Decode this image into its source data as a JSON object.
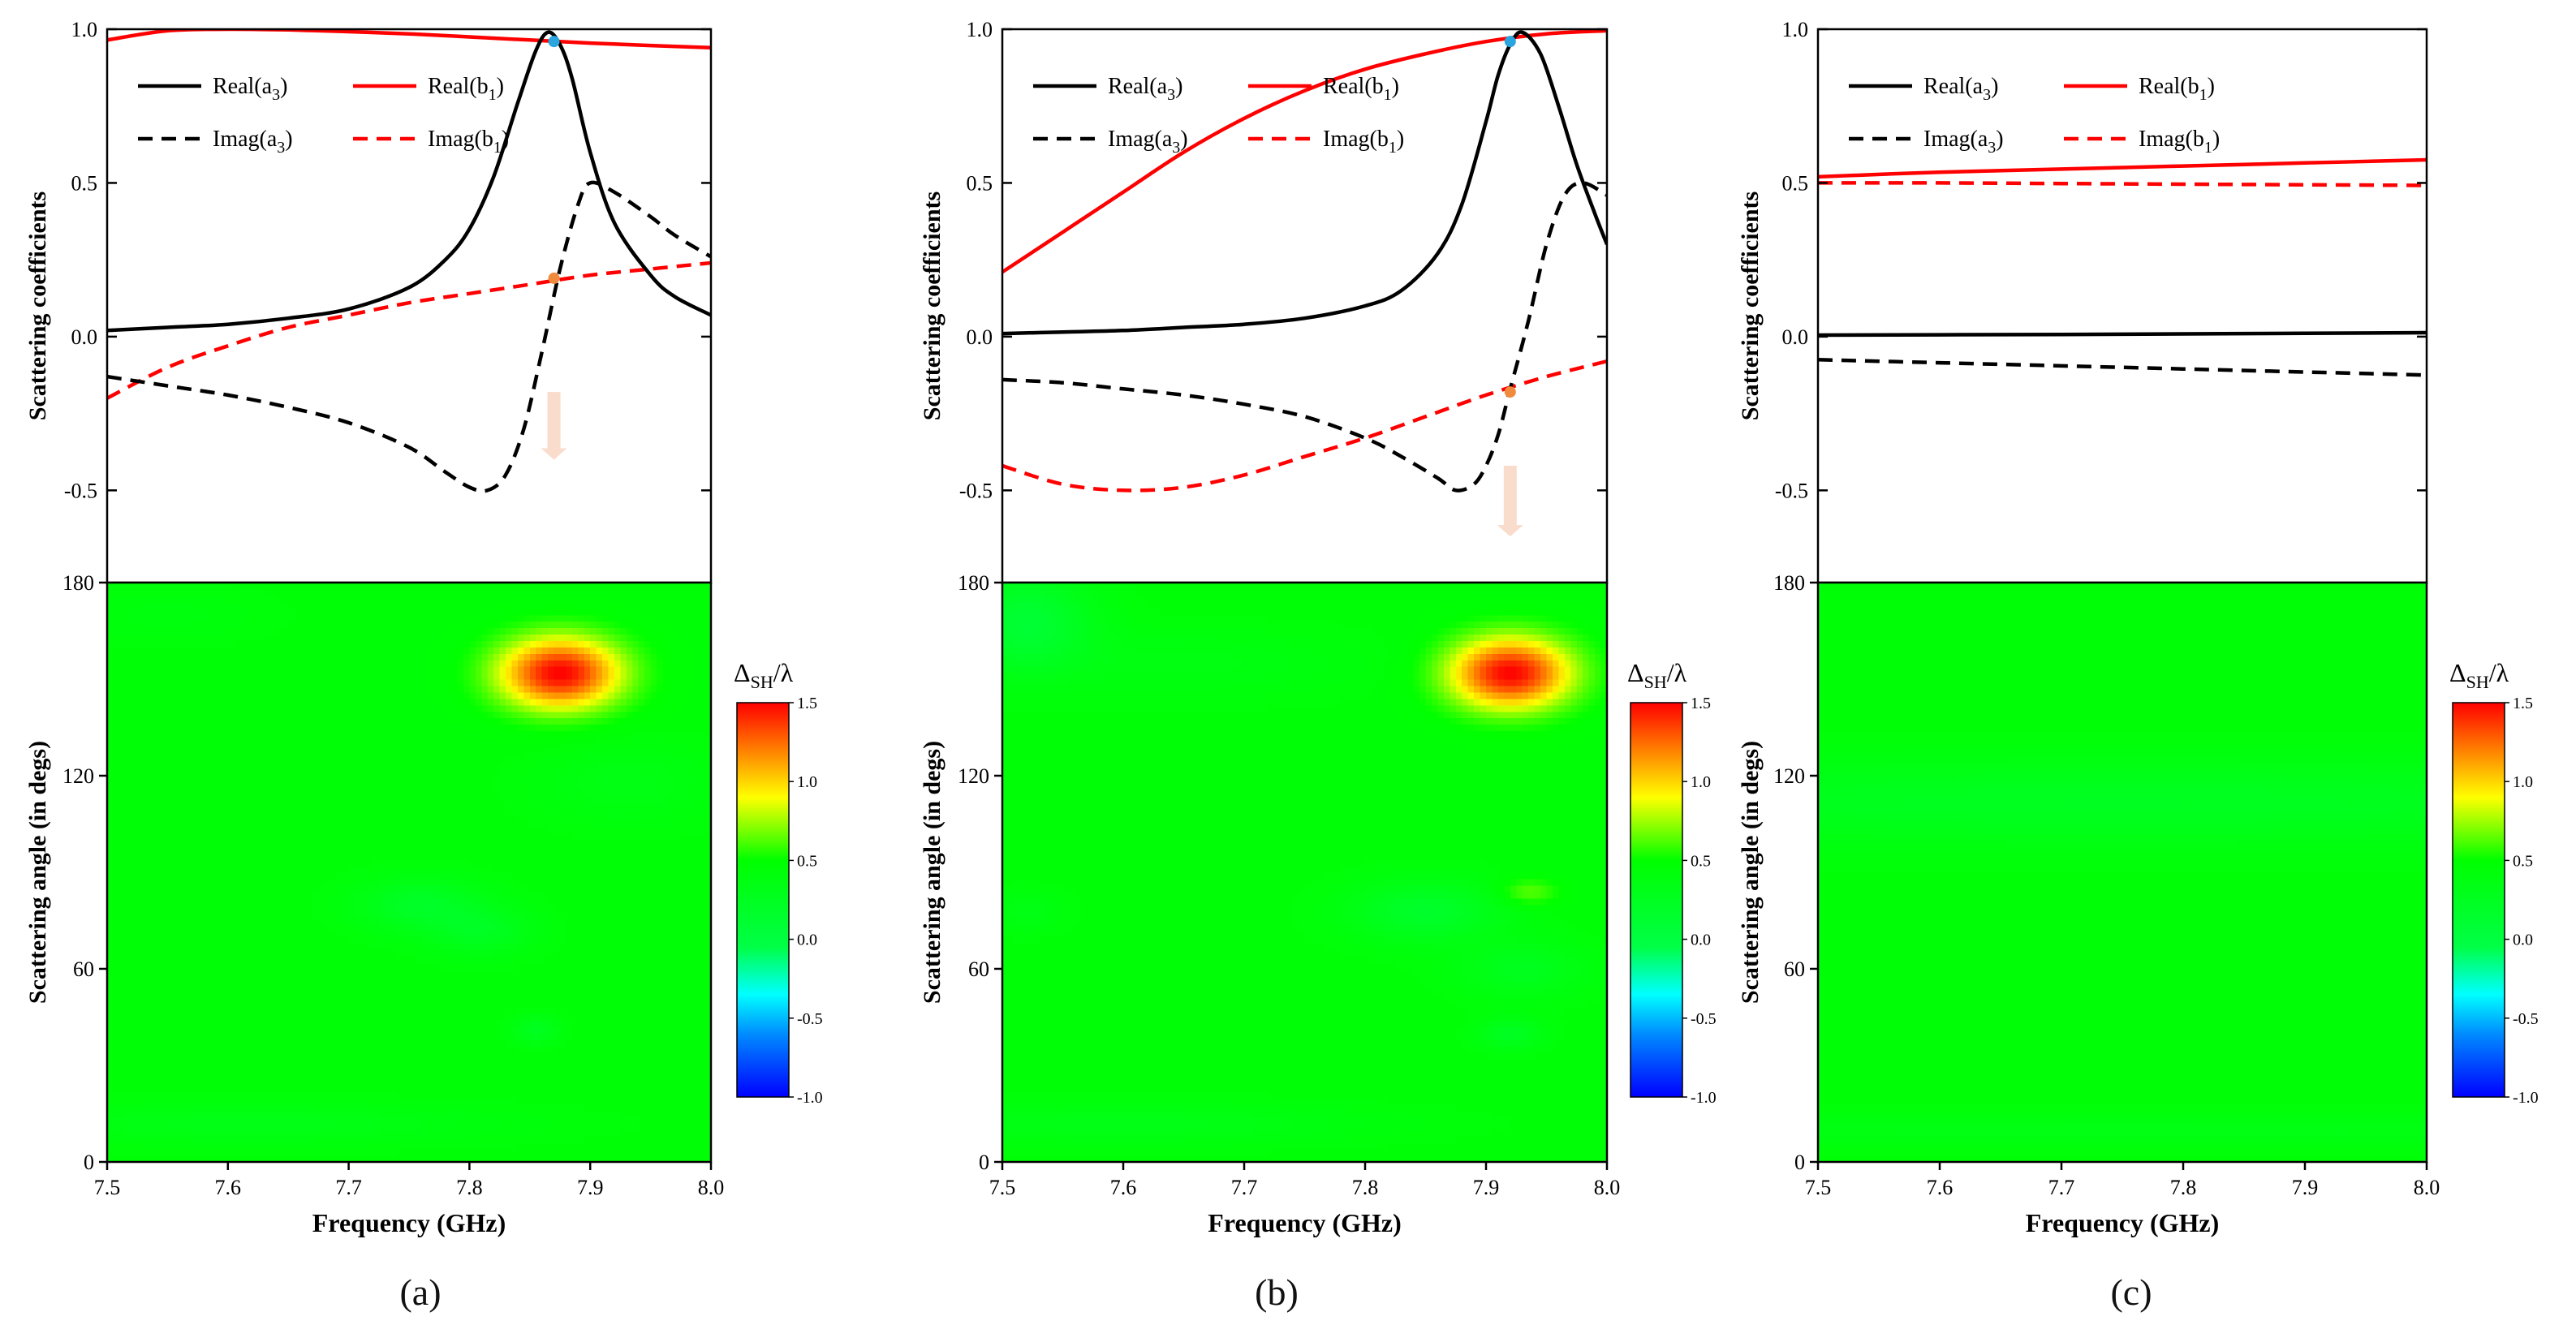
{
  "figure": {
    "panels": [
      {
        "id": "a",
        "label": "(a)"
      },
      {
        "id": "b",
        "label": "(b)"
      },
      {
        "id": "c",
        "label": "(c)"
      }
    ]
  },
  "chart_data": [
    {
      "panel": "a",
      "type": "line",
      "xlabel": "Frequency (GHz)",
      "ylabel": "Scattering coefficients",
      "xlim": [
        7.5,
        8.0
      ],
      "ylim": [
        -0.8,
        1.0
      ],
      "xticks": [
        7.5,
        7.6,
        7.7,
        7.8,
        7.9,
        8.0
      ],
      "xtick_labels": [
        "7.5",
        "7.6",
        "7.7",
        "7.8",
        "7.9",
        "8.0"
      ],
      "yticks": [
        -0.5,
        0.0,
        0.5,
        1.0
      ],
      "ytick_labels": [
        "-0.5",
        "0.0",
        "0.5",
        "1.0"
      ],
      "legend": [
        {
          "series": "real_a3",
          "base": "Real(a",
          "sub": "3",
          "tail": ")"
        },
        {
          "series": "real_b1",
          "base": "Real(b",
          "sub": "1",
          "tail": ")"
        },
        {
          "series": "imag_a3",
          "base": "Imag(a",
          "sub": "3",
          "tail": ")"
        },
        {
          "series": "imag_b1",
          "base": "Imag(b",
          "sub": "1",
          "tail": ")"
        }
      ],
      "legend_position": "top-left",
      "series": [
        {
          "name": "real_a3",
          "color": "#000000",
          "dash": false,
          "x": [
            7.5,
            7.55,
            7.6,
            7.65,
            7.7,
            7.75,
            7.78,
            7.8,
            7.82,
            7.84,
            7.855,
            7.865,
            7.875,
            7.885,
            7.9,
            7.92,
            7.95,
            7.97,
            8.0
          ],
          "y": [
            0.02,
            0.03,
            0.04,
            0.06,
            0.09,
            0.16,
            0.25,
            0.35,
            0.52,
            0.76,
            0.93,
            0.99,
            0.95,
            0.84,
            0.6,
            0.37,
            0.2,
            0.13,
            0.07
          ]
        },
        {
          "name": "real_b1",
          "color": "#ff0000",
          "dash": false,
          "x": [
            7.5,
            7.55,
            7.6,
            7.65,
            7.7,
            7.75,
            7.8,
            7.85,
            7.9,
            7.95,
            8.0
          ],
          "y": [
            0.965,
            0.995,
            1.0,
            0.998,
            0.992,
            0.985,
            0.975,
            0.965,
            0.955,
            0.947,
            0.94
          ]
        },
        {
          "name": "imag_a3",
          "color": "#000000",
          "dash": true,
          "x": [
            7.5,
            7.55,
            7.6,
            7.65,
            7.7,
            7.75,
            7.78,
            7.8,
            7.815,
            7.83,
            7.845,
            7.86,
            7.875,
            7.89,
            7.9,
            7.92,
            7.95,
            7.97,
            8.0
          ],
          "y": [
            -0.13,
            -0.16,
            -0.19,
            -0.23,
            -0.28,
            -0.36,
            -0.44,
            -0.49,
            -0.5,
            -0.45,
            -0.3,
            -0.05,
            0.22,
            0.43,
            0.5,
            0.47,
            0.39,
            0.33,
            0.26
          ]
        },
        {
          "name": "imag_b1",
          "color": "#ff0000",
          "dash": true,
          "x": [
            7.5,
            7.55,
            7.6,
            7.65,
            7.7,
            7.75,
            7.8,
            7.85,
            7.9,
            7.95,
            8.0
          ],
          "y": [
            -0.2,
            -0.1,
            -0.03,
            0.03,
            0.07,
            0.11,
            0.14,
            0.17,
            0.2,
            0.22,
            0.24
          ]
        }
      ],
      "markers": [
        {
          "x": 7.87,
          "y": 0.96,
          "color": "#2ba5e0"
        },
        {
          "x": 7.87,
          "y": 0.19,
          "color": "#f08a3c"
        }
      ],
      "arrow": {
        "x": 7.87,
        "y_from": -0.18,
        "y_to": -0.4,
        "color": "#f9dccc"
      }
    },
    {
      "panel": "b",
      "type": "line",
      "xlabel": "Frequency (GHz)",
      "ylabel": "Scattering coefficients",
      "xlim": [
        7.5,
        8.0
      ],
      "ylim": [
        -0.8,
        1.0
      ],
      "xticks": [
        7.5,
        7.6,
        7.7,
        7.8,
        7.9,
        8.0
      ],
      "xtick_labels": [
        "7.5",
        "7.6",
        "7.7",
        "7.8",
        "7.9",
        "8.0"
      ],
      "yticks": [
        -0.5,
        0.0,
        0.5,
        1.0
      ],
      "ytick_labels": [
        "-0.5",
        "0.0",
        "0.5",
        "1.0"
      ],
      "legend": [
        {
          "series": "real_a3",
          "base": "Real(a",
          "sub": "3",
          "tail": ")"
        },
        {
          "series": "real_b1",
          "base": "Real(b",
          "sub": "1",
          "tail": ")"
        },
        {
          "series": "imag_a3",
          "base": "Imag(a",
          "sub": "3",
          "tail": ")"
        },
        {
          "series": "imag_b1",
          "base": "Imag(b",
          "sub": "1",
          "tail": ")"
        }
      ],
      "legend_position": "top-left",
      "series": [
        {
          "name": "real_a3",
          "color": "#000000",
          "dash": false,
          "x": [
            7.5,
            7.55,
            7.6,
            7.65,
            7.7,
            7.75,
            7.8,
            7.83,
            7.86,
            7.88,
            7.9,
            7.91,
            7.92,
            7.93,
            7.945,
            7.96,
            7.975,
            7.99,
            8.0
          ],
          "y": [
            0.01,
            0.015,
            0.02,
            0.03,
            0.04,
            0.06,
            0.1,
            0.15,
            0.27,
            0.43,
            0.7,
            0.85,
            0.95,
            0.99,
            0.92,
            0.75,
            0.56,
            0.4,
            0.3
          ]
        },
        {
          "name": "real_b1",
          "color": "#ff0000",
          "dash": false,
          "x": [
            7.5,
            7.55,
            7.6,
            7.65,
            7.7,
            7.75,
            7.8,
            7.85,
            7.9,
            7.95,
            8.0
          ],
          "y": [
            0.21,
            0.34,
            0.47,
            0.6,
            0.71,
            0.8,
            0.87,
            0.92,
            0.96,
            0.985,
            0.995
          ]
        },
        {
          "name": "imag_a3",
          "color": "#000000",
          "dash": true,
          "x": [
            7.5,
            7.55,
            7.6,
            7.65,
            7.7,
            7.75,
            7.8,
            7.83,
            7.86,
            7.875,
            7.89,
            7.9,
            7.91,
            7.92,
            7.935,
            7.95,
            7.965,
            7.98,
            8.0
          ],
          "y": [
            -0.14,
            -0.15,
            -0.17,
            -0.19,
            -0.22,
            -0.26,
            -0.33,
            -0.39,
            -0.46,
            -0.5,
            -0.48,
            -0.42,
            -0.32,
            -0.17,
            0.05,
            0.3,
            0.46,
            0.5,
            0.46
          ]
        },
        {
          "name": "imag_b1",
          "color": "#ff0000",
          "dash": true,
          "x": [
            7.5,
            7.55,
            7.6,
            7.65,
            7.7,
            7.75,
            7.8,
            7.85,
            7.9,
            7.95,
            8.0
          ],
          "y": [
            -0.42,
            -0.48,
            -0.5,
            -0.49,
            -0.45,
            -0.39,
            -0.33,
            -0.26,
            -0.19,
            -0.13,
            -0.08
          ]
        }
      ],
      "markers": [
        {
          "x": 7.92,
          "y": 0.96,
          "color": "#2ba5e0"
        },
        {
          "x": 7.92,
          "y": -0.18,
          "color": "#f08a3c"
        }
      ],
      "arrow": {
        "x": 7.92,
        "y_from": -0.42,
        "y_to": -0.65,
        "color": "#f9dccc"
      }
    },
    {
      "panel": "c",
      "type": "line",
      "xlabel": "Frequency (GHz)",
      "ylabel": "Scattering coefficients",
      "xlim": [
        7.5,
        8.0
      ],
      "ylim": [
        -0.8,
        1.0
      ],
      "xticks": [
        7.5,
        7.6,
        7.7,
        7.8,
        7.9,
        8.0
      ],
      "xtick_labels": [
        "7.5",
        "7.6",
        "7.7",
        "7.8",
        "7.9",
        "8.0"
      ],
      "yticks": [
        -0.5,
        0.0,
        0.5,
        1.0
      ],
      "ytick_labels": [
        "-0.5",
        "0.0",
        "0.5",
        "1.0"
      ],
      "legend": [
        {
          "series": "real_a3",
          "base": "Real(a",
          "sub": "3",
          "tail": ")"
        },
        {
          "series": "real_b1",
          "base": "Real(b",
          "sub": "1",
          "tail": ")"
        },
        {
          "series": "imag_a3",
          "base": "Imag(a",
          "sub": "3",
          "tail": ")"
        },
        {
          "series": "imag_b1",
          "base": "Imag(b",
          "sub": "1",
          "tail": ")"
        }
      ],
      "legend_position": "top-left",
      "series": [
        {
          "name": "real_a3",
          "color": "#000000",
          "dash": false,
          "x": [
            7.5,
            7.6,
            7.7,
            7.8,
            7.9,
            8.0
          ],
          "y": [
            0.005,
            0.006,
            0.007,
            0.009,
            0.011,
            0.013
          ]
        },
        {
          "name": "real_b1",
          "color": "#ff0000",
          "dash": false,
          "x": [
            7.5,
            7.6,
            7.7,
            7.8,
            7.9,
            8.0
          ],
          "y": [
            0.52,
            0.535,
            0.545,
            0.555,
            0.565,
            0.575
          ]
        },
        {
          "name": "imag_a3",
          "color": "#000000",
          "dash": true,
          "x": [
            7.5,
            7.6,
            7.7,
            7.8,
            7.9,
            8.0
          ],
          "y": [
            -0.075,
            -0.085,
            -0.095,
            -0.105,
            -0.115,
            -0.125
          ]
        },
        {
          "name": "imag_b1",
          "color": "#ff0000",
          "dash": true,
          "x": [
            7.5,
            7.6,
            7.7,
            7.8,
            7.9,
            8.0
          ],
          "y": [
            0.5,
            0.5,
            0.498,
            0.496,
            0.494,
            0.492
          ]
        }
      ],
      "markers": [],
      "arrow": null
    },
    {
      "panel": "a",
      "type": "heatmap",
      "xlabel": "Frequency (GHz)",
      "ylabel": "Scattering angle  (in degs)",
      "xlim": [
        7.5,
        8.0
      ],
      "ylim": [
        0,
        180
      ],
      "xticks": [
        7.5,
        7.6,
        7.7,
        7.8,
        7.9,
        8.0
      ],
      "xtick_labels": [
        "7.5",
        "7.6",
        "7.7",
        "7.8",
        "7.9",
        "8.0"
      ],
      "yticks": [
        0,
        60,
        120,
        180
      ],
      "ytick_labels": [
        "0",
        "60",
        "120",
        "180"
      ],
      "background_value": 0.45,
      "features": [
        {
          "x": 7.875,
          "y": 152,
          "rx": 0.05,
          "ry": 11,
          "amp": 1.05
        },
        {
          "x": 7.93,
          "y": 118,
          "rx": 0.07,
          "ry": 12,
          "amp": -0.1
        },
        {
          "x": 7.76,
          "y": 80,
          "rx": 0.05,
          "ry": 8,
          "amp": -0.25
        },
        {
          "x": 7.81,
          "y": 72,
          "rx": 0.04,
          "ry": 7,
          "amp": -0.2
        },
        {
          "x": 7.855,
          "y": 41,
          "rx": 0.018,
          "ry": 4,
          "amp": -0.2
        },
        {
          "x": 7.62,
          "y": 12,
          "rx": 0.2,
          "ry": 6,
          "amp": -0.12
        },
        {
          "x": 7.55,
          "y": 170,
          "rx": 0.08,
          "ry": 8,
          "amp": -0.05
        }
      ],
      "colorbar": {
        "title_base": "Δ",
        "title_sub": "SH",
        "title_tail": "/λ",
        "min": -1.0,
        "max": 1.5,
        "ticks": [
          "1.5",
          "1.0",
          "0.5",
          "0.0",
          "-0.5",
          "-1.0"
        ]
      }
    },
    {
      "panel": "b",
      "type": "heatmap",
      "xlabel": "Frequency (GHz)",
      "ylabel": "Scattering angle  (in degs)",
      "xlim": [
        7.5,
        8.0
      ],
      "ylim": [
        0,
        180
      ],
      "xticks": [
        7.5,
        7.6,
        7.7,
        7.8,
        7.9,
        8.0
      ],
      "xtick_labels": [
        "7.5",
        "7.6",
        "7.7",
        "7.8",
        "7.9",
        "8.0"
      ],
      "yticks": [
        0,
        60,
        120,
        180
      ],
      "ytick_labels": [
        "0",
        "60",
        "120",
        "180"
      ],
      "background_value": 0.45,
      "features": [
        {
          "x": 7.92,
          "y": 152,
          "rx": 0.05,
          "ry": 11,
          "amp": 1.05
        },
        {
          "x": 7.52,
          "y": 168,
          "rx": 0.05,
          "ry": 14,
          "amp": -0.35
        },
        {
          "x": 7.65,
          "y": 155,
          "rx": 0.15,
          "ry": 10,
          "amp": -0.08
        },
        {
          "x": 7.85,
          "y": 78,
          "rx": 0.06,
          "ry": 9,
          "amp": -0.28
        },
        {
          "x": 7.93,
          "y": 60,
          "rx": 0.05,
          "ry": 8,
          "amp": -0.18
        },
        {
          "x": 7.935,
          "y": 84,
          "rx": 0.025,
          "ry": 4,
          "amp": 0.2
        },
        {
          "x": 7.92,
          "y": 40,
          "rx": 0.025,
          "ry": 4.5,
          "amp": -0.22
        },
        {
          "x": 7.52,
          "y": 78,
          "rx": 0.03,
          "ry": 6,
          "amp": -0.1
        },
        {
          "x": 7.6,
          "y": 12,
          "rx": 0.2,
          "ry": 6,
          "amp": -0.12
        }
      ],
      "colorbar": {
        "title_base": "Δ",
        "title_sub": "SH",
        "title_tail": "/λ",
        "min": -1.0,
        "max": 1.5,
        "ticks": [
          "1.5",
          "1.0",
          "0.5",
          "0.0",
          "-0.5",
          "-1.0"
        ]
      }
    },
    {
      "panel": "c",
      "type": "heatmap",
      "xlabel": "Frequency (GHz)",
      "ylabel": "Scattering angle  (in degs)",
      "xlim": [
        7.5,
        8.0
      ],
      "ylim": [
        0,
        180
      ],
      "xticks": [
        7.5,
        7.6,
        7.7,
        7.8,
        7.9,
        8.0
      ],
      "xtick_labels": [
        "7.5",
        "7.6",
        "7.7",
        "7.8",
        "7.9",
        "8.0"
      ],
      "yticks": [
        0,
        60,
        120,
        180
      ],
      "ytick_labels": [
        "0",
        "60",
        "120",
        "180"
      ],
      "background_value": 0.45,
      "features": [
        {
          "x": 7.75,
          "y": 112,
          "rx": 0.6,
          "ry": 13,
          "amp": -0.2
        },
        {
          "x": 7.75,
          "y": 10,
          "rx": 0.6,
          "ry": 5,
          "amp": -0.1
        }
      ],
      "colorbar": {
        "title_base": "Δ",
        "title_sub": "SH",
        "title_tail": "/λ",
        "min": -1.0,
        "max": 1.5,
        "ticks": [
          "1.5",
          "1.0",
          "0.5",
          "0.0",
          "-0.5",
          "-1.0"
        ]
      }
    }
  ]
}
